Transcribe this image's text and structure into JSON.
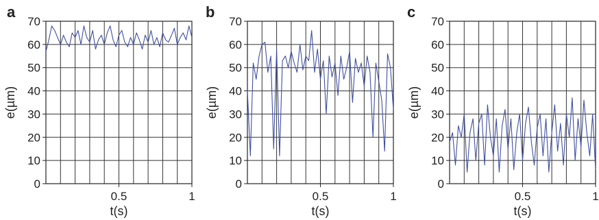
{
  "colors": {
    "series": "#3f4fa0",
    "grid": "#333333",
    "axis": "#222222",
    "text": "#222222"
  },
  "chart_data": [
    {
      "panel_label": "a",
      "type": "line",
      "xlabel": "t(s)",
      "ylabel": "e(µm)",
      "xlim": [
        0,
        1
      ],
      "ylim": [
        0,
        70
      ],
      "yticks": [
        "0",
        "10",
        "20",
        "30",
        "40",
        "50",
        "60",
        "70"
      ],
      "xticks": [
        "0.5",
        "1"
      ],
      "grid": true,
      "series": [
        {
          "x": [
            0,
            0.02,
            0.04,
            0.06,
            0.08,
            0.1,
            0.12,
            0.14,
            0.16,
            0.18,
            0.2,
            0.22,
            0.24,
            0.26,
            0.28,
            0.3,
            0.32,
            0.34,
            0.36,
            0.38,
            0.4,
            0.42,
            0.44,
            0.46,
            0.48,
            0.5,
            0.52,
            0.54,
            0.56,
            0.58,
            0.6,
            0.62,
            0.64,
            0.66,
            0.68,
            0.7,
            0.72,
            0.74,
            0.76,
            0.78,
            0.8,
            0.82,
            0.84,
            0.86,
            0.88,
            0.9,
            0.92,
            0.94,
            0.96,
            0.98,
            1.0
          ],
          "y": [
            57,
            62,
            68,
            66,
            63,
            60,
            64,
            61,
            59,
            65,
            63,
            66,
            60,
            68,
            63,
            61,
            66,
            58,
            62,
            64,
            60,
            65,
            68,
            62,
            59,
            64,
            66,
            61,
            59,
            63,
            60,
            65,
            62,
            58,
            64,
            61,
            66,
            60,
            63,
            59,
            65,
            62,
            61,
            64,
            67,
            60,
            63,
            65,
            62,
            68,
            63
          ]
        }
      ]
    },
    {
      "panel_label": "b",
      "type": "line",
      "xlabel": "t(s)",
      "ylabel": "e(µm)",
      "xlim": [
        0,
        1
      ],
      "ylim": [
        0,
        70
      ],
      "yticks": [
        "0",
        "10",
        "20",
        "30",
        "40",
        "50",
        "60",
        "70"
      ],
      "xticks": [
        "0.5",
        "1"
      ],
      "grid": true,
      "series": [
        {
          "x": [
            0,
            0.02,
            0.04,
            0.06,
            0.08,
            0.1,
            0.12,
            0.14,
            0.16,
            0.18,
            0.2,
            0.22,
            0.24,
            0.26,
            0.28,
            0.3,
            0.32,
            0.34,
            0.36,
            0.38,
            0.4,
            0.42,
            0.44,
            0.46,
            0.48,
            0.5,
            0.52,
            0.54,
            0.56,
            0.58,
            0.6,
            0.62,
            0.64,
            0.66,
            0.68,
            0.7,
            0.72,
            0.74,
            0.76,
            0.78,
            0.8,
            0.82,
            0.84,
            0.86,
            0.88,
            0.9,
            0.92,
            0.94,
            0.96,
            0.98,
            1.0
          ],
          "y": [
            40,
            12,
            52,
            45,
            55,
            60,
            61,
            48,
            55,
            15,
            58,
            12,
            53,
            55,
            50,
            57,
            52,
            48,
            60,
            49,
            55,
            53,
            66,
            48,
            58,
            45,
            53,
            30,
            55,
            46,
            52,
            38,
            55,
            45,
            50,
            57,
            35,
            54,
            48,
            52,
            42,
            55,
            48,
            20,
            52,
            44,
            36,
            14,
            56,
            50,
            32
          ]
        }
      ]
    },
    {
      "panel_label": "c",
      "type": "line",
      "xlabel": "t(s)",
      "ylabel": "e(µm)",
      "xlim": [
        0,
        1
      ],
      "ylim": [
        0,
        70
      ],
      "yticks": [
        "0",
        "10",
        "20",
        "30",
        "40",
        "50",
        "60",
        "70"
      ],
      "xticks": [
        "0.5",
        "1"
      ],
      "grid": true,
      "series": [
        {
          "x": [
            0,
            0.02,
            0.04,
            0.06,
            0.08,
            0.1,
            0.12,
            0.14,
            0.16,
            0.18,
            0.2,
            0.22,
            0.24,
            0.26,
            0.28,
            0.3,
            0.32,
            0.34,
            0.36,
            0.38,
            0.4,
            0.42,
            0.44,
            0.46,
            0.48,
            0.5,
            0.52,
            0.54,
            0.56,
            0.58,
            0.6,
            0.62,
            0.64,
            0.66,
            0.68,
            0.7,
            0.72,
            0.74,
            0.76,
            0.78,
            0.8,
            0.82,
            0.84,
            0.86,
            0.88,
            0.9,
            0.92,
            0.94,
            0.96,
            0.98,
            1.0
          ],
          "y": [
            18,
            22,
            8,
            25,
            20,
            30,
            5,
            22,
            28,
            10,
            26,
            30,
            8,
            34,
            20,
            12,
            28,
            5,
            25,
            32,
            15,
            28,
            6,
            22,
            30,
            10,
            26,
            33,
            18,
            8,
            24,
            30,
            12,
            28,
            5,
            22,
            34,
            14,
            26,
            8,
            30,
            20,
            37,
            10,
            28,
            16,
            36,
            22,
            12,
            30,
            6
          ]
        }
      ]
    }
  ]
}
